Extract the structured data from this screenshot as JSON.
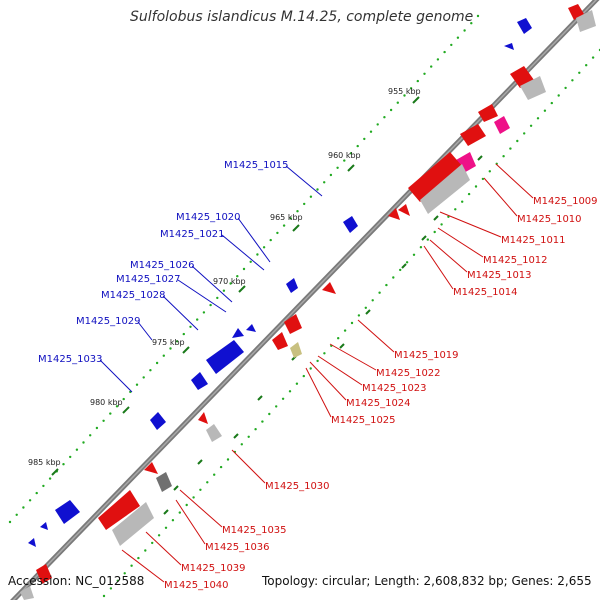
{
  "title": "Sulfolobus islandicus M.14.25, complete genome",
  "footer": {
    "accession": "Accession: NC_012588",
    "summary": "Topology: circular; Length: 2,608,832 bp; Genes: 2,655"
  },
  "colors": {
    "forward_gene": "#1010d0",
    "reverse_gene": "#e01010",
    "pseudo_gene": "#ee1188",
    "rna": "#b8b8b8",
    "misc": "#c8c080",
    "backbone": "#7a7a7a",
    "tick_major": "#1a7a1a",
    "tick_minor": "#22aa22",
    "forward_label": "#1010c0",
    "reverse_label": "#d01010"
  },
  "scale": {
    "unit": "kbp",
    "ticks": [
      {
        "label": "955 kbp"
      },
      {
        "label": "960 kbp"
      },
      {
        "label": "965 kbp"
      },
      {
        "label": "970 kbp"
      },
      {
        "label": "975 kbp"
      },
      {
        "label": "980 kbp"
      },
      {
        "label": "985 kbp"
      }
    ]
  },
  "forward_labels": [
    {
      "name": "M1425_1015"
    },
    {
      "name": "M1425_1020"
    },
    {
      "name": "M1425_1021"
    },
    {
      "name": "M1425_1026"
    },
    {
      "name": "M1425_1027"
    },
    {
      "name": "M1425_1028"
    },
    {
      "name": "M1425_1029"
    },
    {
      "name": "M1425_1033"
    }
  ],
  "reverse_labels": [
    {
      "name": "M1425_1009"
    },
    {
      "name": "M1425_1010"
    },
    {
      "name": "M1425_1011"
    },
    {
      "name": "M1425_1012"
    },
    {
      "name": "M1425_1013"
    },
    {
      "name": "M1425_1014"
    },
    {
      "name": "M1425_1019"
    },
    {
      "name": "M1425_1022"
    },
    {
      "name": "M1425_1023"
    },
    {
      "name": "M1425_1024"
    },
    {
      "name": "M1425_1025"
    },
    {
      "name": "M1425_1030"
    },
    {
      "name": "M1425_1035"
    },
    {
      "name": "M1425_1036"
    },
    {
      "name": "M1425_1039"
    },
    {
      "name": "M1425_1040"
    }
  ]
}
